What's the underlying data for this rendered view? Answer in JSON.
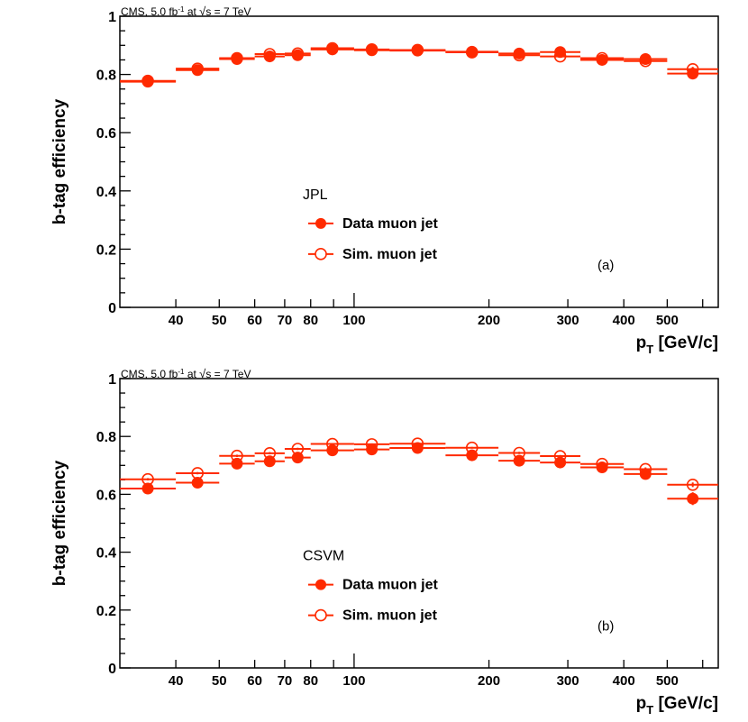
{
  "chart_data": [
    {
      "type": "scatter",
      "panel_label": "(a)",
      "header": "CMS, 5.0 fb",
      "header_sup": "-1",
      "header_mid": " at ",
      "header_tail": "s = 7 TeV",
      "ylabel": "b-tag efficiency",
      "xlabel_main": "p",
      "xlabel_sub": "T",
      "xlabel_unit": " [GeV/c]",
      "xscale": "log",
      "xlim": [
        30,
        650
      ],
      "ylim": [
        0,
        1
      ],
      "yticks": [
        "0",
        "0.2",
        "0.4",
        "0.6",
        "0.8",
        "1"
      ],
      "xticks": [
        "40",
        "50",
        "60",
        "70",
        "80",
        "100",
        "200",
        "300",
        "400",
        "500"
      ],
      "legend_title": "JPL",
      "legend": [
        "Data muon jet",
        "Sim. muon jet"
      ],
      "bins": [
        [
          30,
          40
        ],
        [
          40,
          50
        ],
        [
          50,
          60
        ],
        [
          60,
          70
        ],
        [
          70,
          80
        ],
        [
          80,
          100
        ],
        [
          100,
          120
        ],
        [
          120,
          160
        ],
        [
          160,
          210
        ],
        [
          210,
          260
        ],
        [
          260,
          320
        ],
        [
          320,
          400
        ],
        [
          400,
          500
        ],
        [
          500,
          650
        ]
      ],
      "series": [
        {
          "name": "Data muon jet",
          "marker": "filled",
          "values": [
            0.775,
            0.815,
            0.853,
            0.862,
            0.866,
            0.886,
            0.883,
            0.882,
            0.878,
            0.872,
            0.877,
            0.85,
            0.853,
            0.803
          ],
          "errors": [
            0.01,
            0.008,
            0.008,
            0.008,
            0.008,
            0.006,
            0.006,
            0.006,
            0.006,
            0.008,
            0.008,
            0.01,
            0.012,
            0.02
          ]
        },
        {
          "name": "Sim. muon jet",
          "marker": "open",
          "values": [
            0.778,
            0.82,
            0.856,
            0.87,
            0.872,
            0.89,
            0.886,
            0.884,
            0.876,
            0.866,
            0.862,
            0.856,
            0.846,
            0.818
          ],
          "errors": [
            0.004,
            0.004,
            0.004,
            0.004,
            0.004,
            0.003,
            0.003,
            0.003,
            0.003,
            0.004,
            0.004,
            0.005,
            0.006,
            0.008
          ]
        }
      ]
    },
    {
      "type": "scatter",
      "panel_label": "(b)",
      "header": "CMS, 5.0 fb",
      "header_sup": "-1",
      "header_mid": " at ",
      "header_tail": "s = 7 TeV",
      "ylabel": "b-tag efficiency",
      "xlabel_main": "p",
      "xlabel_sub": "T",
      "xlabel_unit": " [GeV/c]",
      "xscale": "log",
      "xlim": [
        30,
        650
      ],
      "ylim": [
        0,
        1
      ],
      "yticks": [
        "0",
        "0.2",
        "0.4",
        "0.6",
        "0.8",
        "1"
      ],
      "xticks": [
        "40",
        "50",
        "60",
        "70",
        "80",
        "100",
        "200",
        "300",
        "400",
        "500"
      ],
      "legend_title": "CSVM",
      "legend": [
        "Data muon jet",
        "Sim. muon jet"
      ],
      "bins": [
        [
          30,
          40
        ],
        [
          40,
          50
        ],
        [
          50,
          60
        ],
        [
          60,
          70
        ],
        [
          70,
          80
        ],
        [
          80,
          100
        ],
        [
          100,
          120
        ],
        [
          120,
          160
        ],
        [
          160,
          210
        ],
        [
          210,
          260
        ],
        [
          260,
          320
        ],
        [
          320,
          400
        ],
        [
          400,
          500
        ],
        [
          500,
          650
        ]
      ],
      "series": [
        {
          "name": "Data muon jet",
          "marker": "filled",
          "values": [
            0.62,
            0.64,
            0.706,
            0.714,
            0.727,
            0.752,
            0.755,
            0.76,
            0.735,
            0.716,
            0.71,
            0.693,
            0.67,
            0.585
          ],
          "errors": [
            0.012,
            0.01,
            0.01,
            0.01,
            0.01,
            0.008,
            0.01,
            0.008,
            0.008,
            0.01,
            0.01,
            0.012,
            0.014,
            0.022
          ]
        },
        {
          "name": "Sim. muon jet",
          "marker": "open",
          "values": [
            0.652,
            0.673,
            0.733,
            0.742,
            0.757,
            0.774,
            0.773,
            0.775,
            0.761,
            0.743,
            0.732,
            0.705,
            0.687,
            0.633
          ],
          "errors": [
            0.004,
            0.004,
            0.004,
            0.004,
            0.004,
            0.003,
            0.003,
            0.003,
            0.003,
            0.004,
            0.004,
            0.005,
            0.006,
            0.008
          ]
        }
      ]
    }
  ],
  "colors": {
    "marker": "#ff2a00",
    "axis": "#000000"
  },
  "icons": {
    "sqrt": "square-root-sign"
  }
}
